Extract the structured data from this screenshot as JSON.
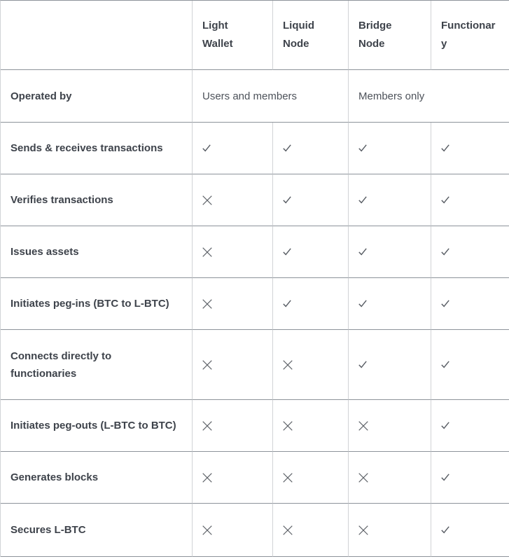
{
  "table": {
    "columns": [
      {
        "label": ""
      },
      {
        "label": "Light Wallet"
      },
      {
        "label": "Liquid Node"
      },
      {
        "label": "Bridge Node"
      },
      {
        "label": "Functionary"
      }
    ],
    "operated_row": {
      "label": "Operated by",
      "values": [
        {
          "text": "Users and members",
          "span": 2
        },
        {
          "text": "Members only",
          "span": 2
        }
      ]
    },
    "feature_rows": [
      {
        "label": "Sends & receives transactions",
        "marks": [
          "check",
          "check",
          "check",
          "check"
        ]
      },
      {
        "label": "Verifies transactions",
        "marks": [
          "cross",
          "check",
          "check",
          "check"
        ]
      },
      {
        "label": "Issues assets",
        "marks": [
          "cross",
          "check",
          "check",
          "check"
        ]
      },
      {
        "label": "Initiates peg-ins (BTC to L-BTC)",
        "marks": [
          "cross",
          "check",
          "check",
          "check"
        ]
      },
      {
        "label": "Connects directly to functionaries",
        "marks": [
          "cross",
          "cross",
          "check",
          "check"
        ]
      },
      {
        "label": "Initiates peg-outs (L-BTC to BTC)",
        "marks": [
          "cross",
          "cross",
          "cross",
          "check"
        ]
      },
      {
        "label": "Generates blocks",
        "marks": [
          "cross",
          "cross",
          "cross",
          "check"
        ]
      },
      {
        "label": "Secures L-BTC",
        "marks": [
          "cross",
          "cross",
          "cross",
          "check"
        ]
      }
    ],
    "glyphs": {
      "check": "✓",
      "cross": "✕"
    },
    "colors": {
      "label_text": "#3e434b",
      "value_text": "#4d525a",
      "mark": "#565b62",
      "horizontal_border": "#8d939a",
      "vertical_border": "#d1d3d6"
    }
  }
}
